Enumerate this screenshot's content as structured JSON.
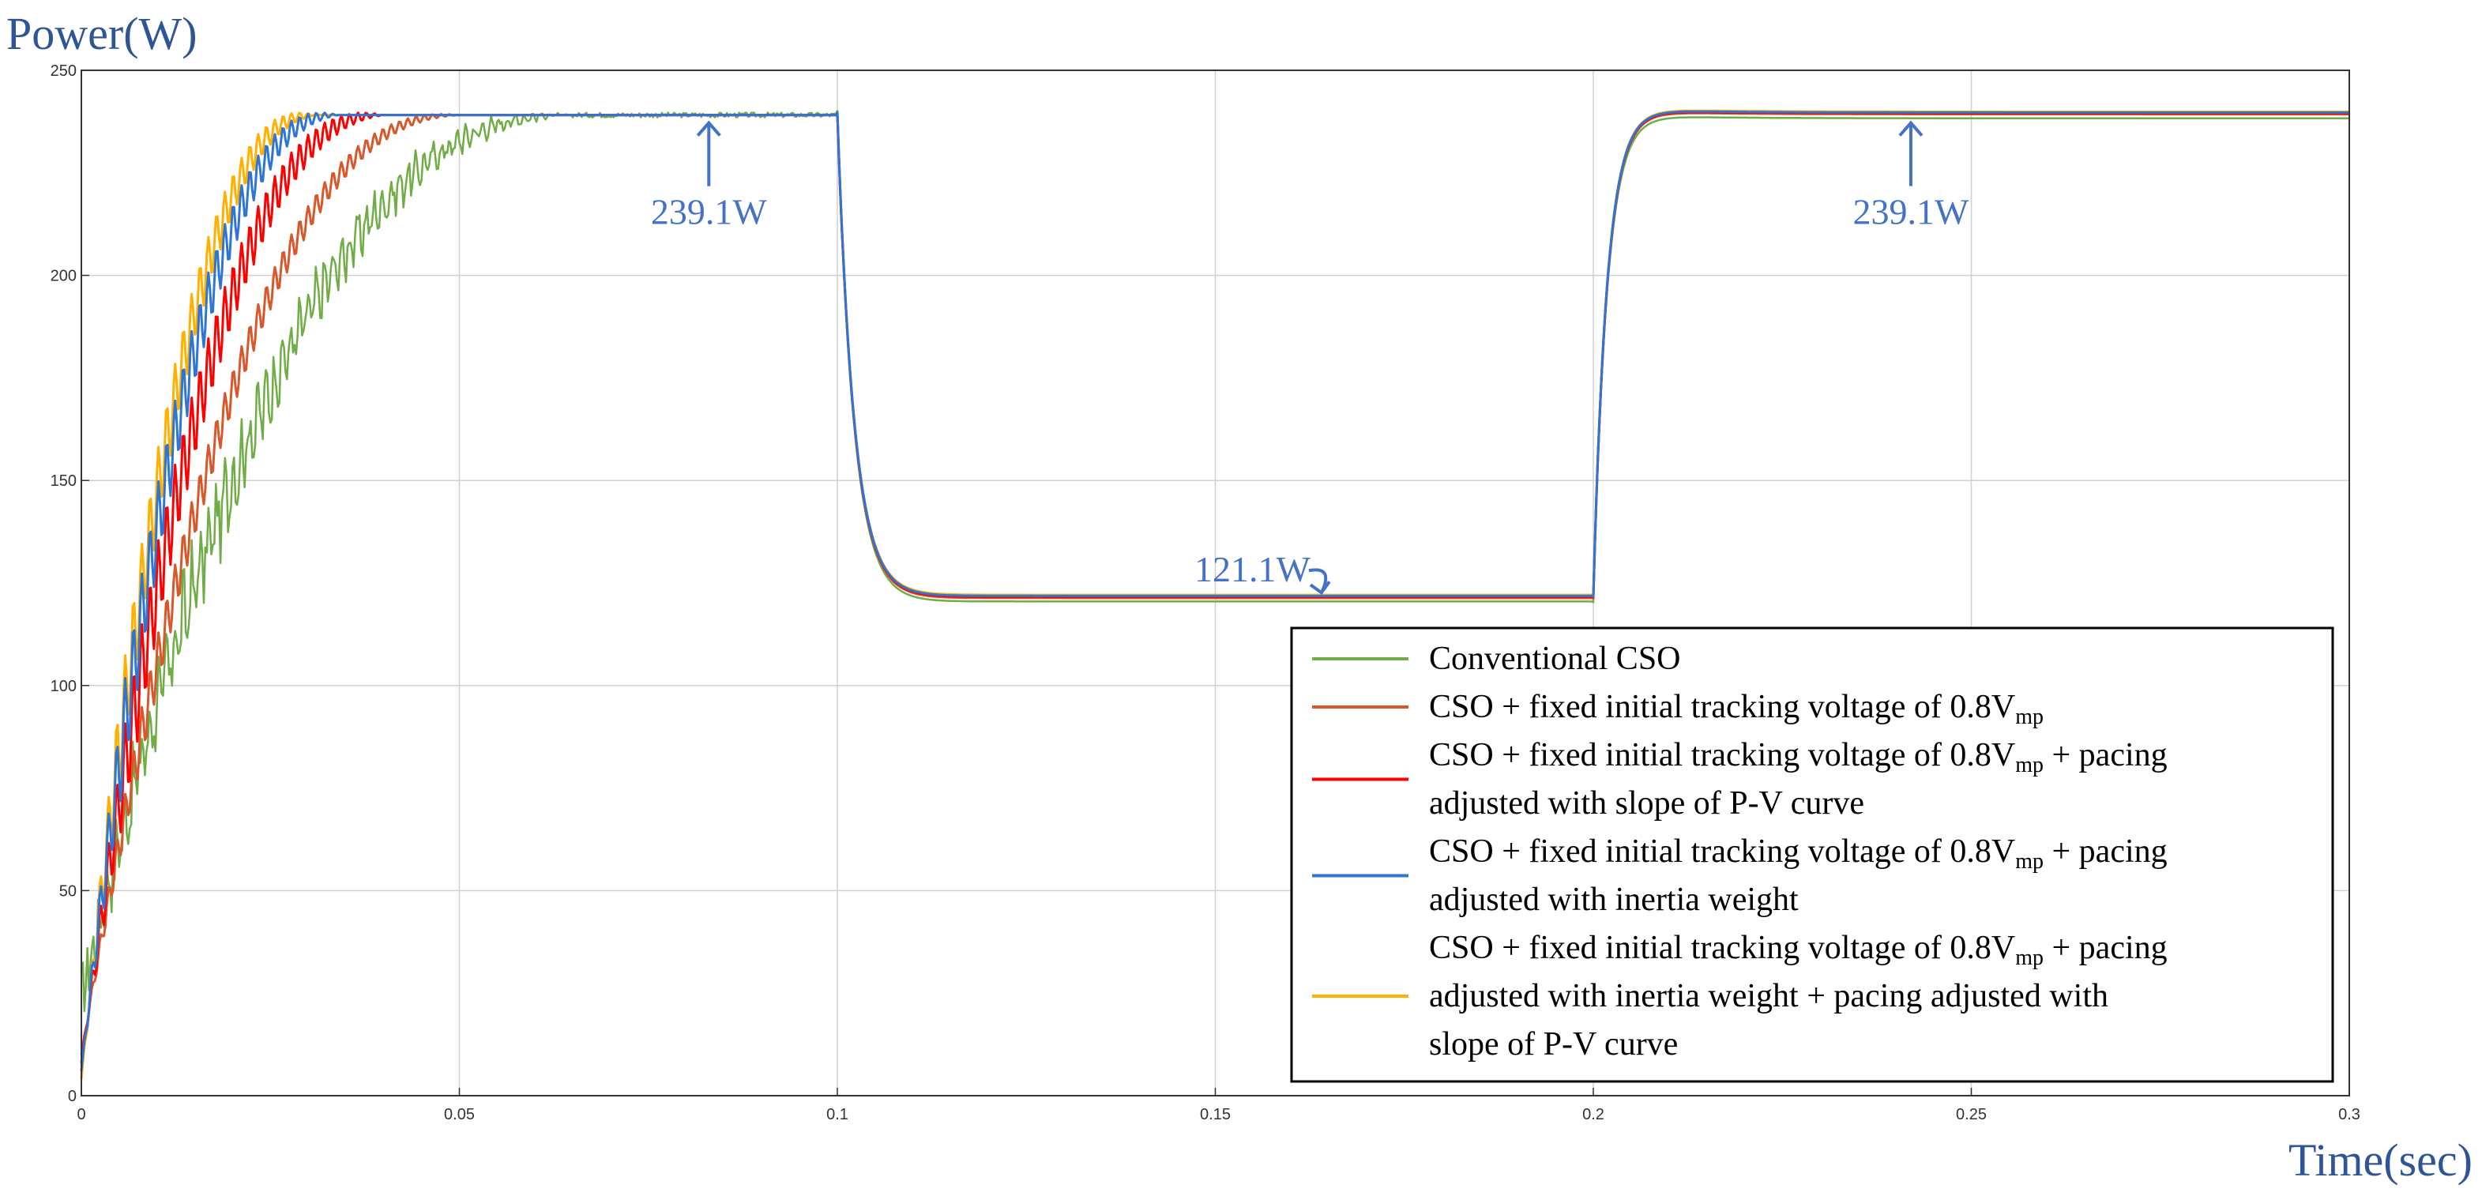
{
  "chart_data": {
    "type": "line",
    "ylabel": "Power(W)",
    "xlabel": "Time(sec)",
    "xlim": [
      0,
      0.3
    ],
    "ylim": [
      0,
      250
    ],
    "xticks": [
      0,
      0.05,
      0.1,
      0.15,
      0.2,
      0.25,
      0.3
    ],
    "xtick_labels": [
      "0",
      "0.05",
      "0.1",
      "0.15",
      "0.2",
      "0.25",
      "0.3"
    ],
    "yticks": [
      0,
      50,
      100,
      150,
      200,
      250
    ],
    "ytick_labels": [
      "0",
      "50",
      "100",
      "150",
      "200",
      "250"
    ],
    "grid": true,
    "legend_position": "bottom-right",
    "phases": [
      {
        "t_start": 0.0,
        "t_end": 0.1,
        "level": 239.1
      },
      {
        "t_start": 0.1,
        "t_end": 0.2,
        "level": 121.1
      },
      {
        "t_start": 0.2,
        "t_end": 0.3,
        "level": 239.1
      }
    ],
    "series": [
      {
        "name": "Conventional CSO",
        "color": "#70ad47",
        "settle_time": 0.065,
        "initial_value": 24,
        "osc_amplitude": 10,
        "noisy": true
      },
      {
        "name": "CSO + fixed initial tracking voltage of 0.8Vmp",
        "color": "#d9582b",
        "settle_time": 0.05,
        "initial_value": 10,
        "osc_amplitude": 8,
        "noisy": false
      },
      {
        "name": "CSO + fixed initial tracking voltage of 0.8Vmp + pacing adjusted with slope of P-V curve",
        "color": "#ff0000",
        "settle_time": 0.04,
        "initial_value": 8,
        "osc_amplitude": 14,
        "noisy": false
      },
      {
        "name": "CSO + fixed initial tracking voltage of 0.8Vmp + pacing adjusted with inertia weight",
        "color": "#2e75d6",
        "settle_time": 0.034,
        "initial_value": 6,
        "osc_amplitude": 14,
        "noisy": false
      },
      {
        "name": "CSO + fixed initial tracking voltage of 0.8Vmp + pacing adjusted with inertia weight + pacing adjusted with slope of P-V curve",
        "color": "#ffb000",
        "settle_time": 0.031,
        "initial_value": 4,
        "osc_amplitude": 14,
        "noisy": false
      }
    ],
    "annotations": [
      {
        "text": "239.1W",
        "x": 0.083,
        "y": 239.1,
        "arrow": "up"
      },
      {
        "text": "121.1W",
        "x": 0.163,
        "y": 121.1,
        "arrow": "curved"
      },
      {
        "text": "239.1W",
        "x": 0.242,
        "y": 239.1,
        "arrow": "up"
      }
    ]
  },
  "legend": {
    "entries": [
      {
        "lines": [
          {
            "base": "Conventional CSO"
          }
        ]
      },
      {
        "lines": [
          {
            "base": "CSO + fixed initial tracking voltage of 0.8V",
            "sub": "mp",
            "tail": ""
          }
        ]
      },
      {
        "lines": [
          {
            "base": "CSO + fixed initial tracking voltage of 0.8V",
            "sub": "mp",
            "tail": " + pacing"
          },
          {
            "base": "adjusted with slope of P-V curve"
          }
        ]
      },
      {
        "lines": [
          {
            "base": "CSO + fixed initial tracking voltage of 0.8V",
            "sub": "mp",
            "tail": " + pacing"
          },
          {
            "base": "adjusted with inertia weight"
          }
        ]
      },
      {
        "lines": [
          {
            "base": "CSO + fixed initial tracking voltage of 0.8V",
            "sub": "mp",
            "tail": " + pacing"
          },
          {
            "base": "adjusted with inertia weight + pacing adjusted with"
          },
          {
            "base": "slope of P-V curve"
          }
        ]
      }
    ]
  }
}
